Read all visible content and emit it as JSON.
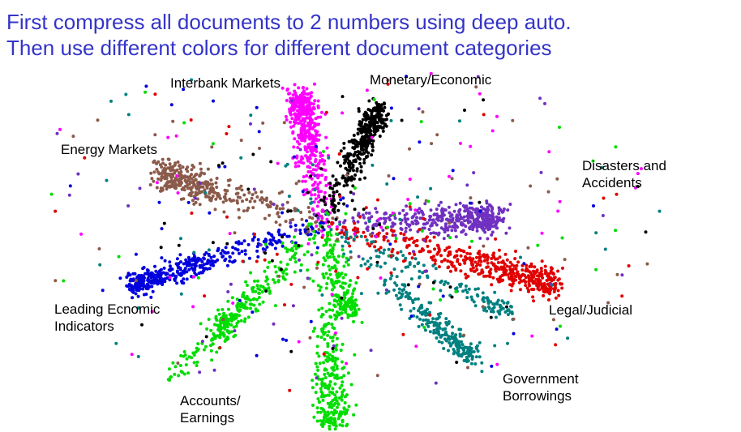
{
  "title": [
    "First compress all documents to 2 numbers using deep auto.",
    "Then use different colors for different document categories"
  ],
  "labels": [
    {
      "lines": [
        "Interbank Markets"
      ]
    },
    {
      "lines": [
        "Monetary/Economic"
      ]
    },
    {
      "lines": [
        "Energy Markets"
      ]
    },
    {
      "lines": [
        "Disasters and",
        "Accidents"
      ]
    },
    {
      "lines": [
        "Leading Ecnomic",
        "Indicators"
      ]
    },
    {
      "lines": [
        "Legal/Judicial"
      ]
    },
    {
      "lines": [
        "Government",
        "Borrowings"
      ]
    },
    {
      "lines": [
        "Accounts/",
        "Earnings"
      ]
    }
  ]
}
